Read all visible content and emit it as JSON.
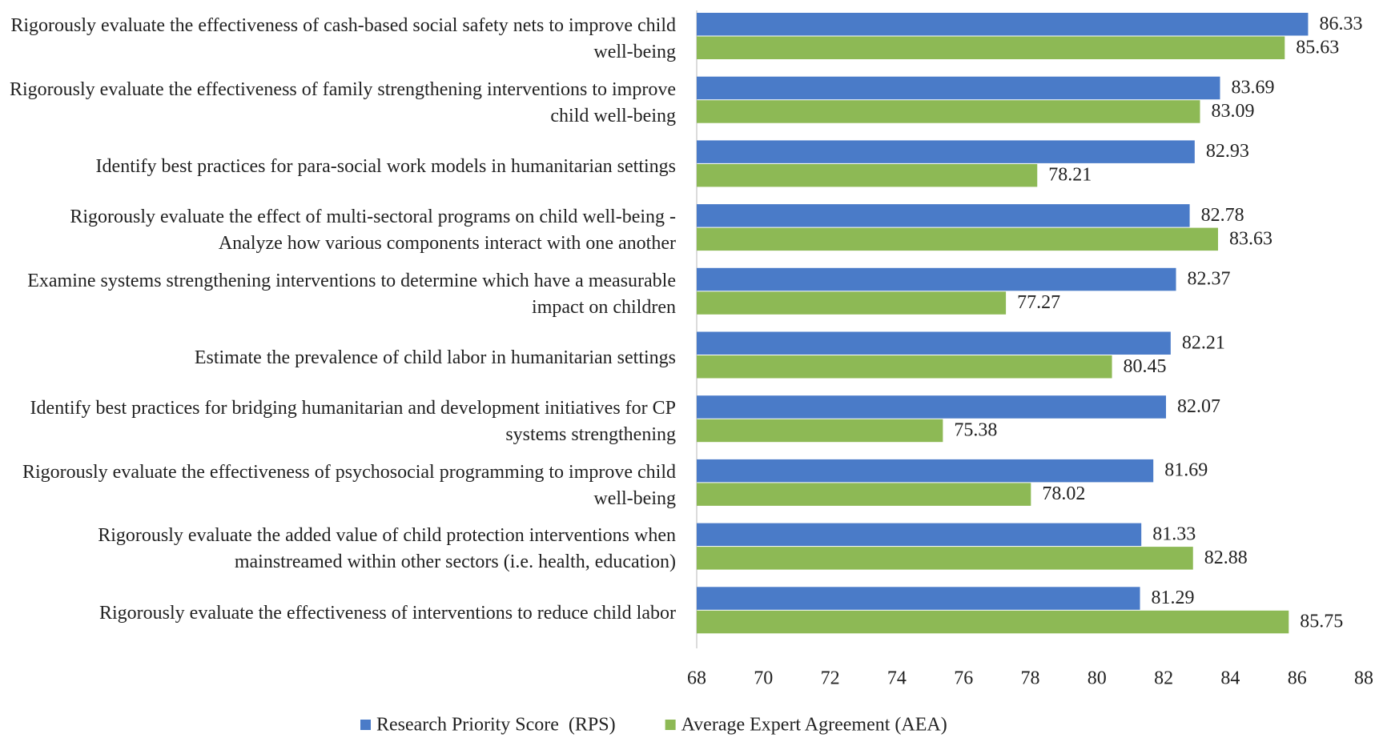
{
  "chart_data": {
    "type": "bar",
    "orientation": "horizontal",
    "categories": [
      "Rigorously evaluate the effectiveness of cash-based social safety nets to improve child well-being",
      "Rigorously evaluate the effectiveness of family strengthening interventions to improve child well-being",
      "Identify best practices for para-social work models in humanitarian settings",
      "Rigorously evaluate the effect of multi-sectoral programs on child well-being - Analyze how various components interact with one another",
      "Examine systems strengthening interventions to determine which have a measurable impact on children",
      "Estimate the prevalence of child labor in humanitarian settings",
      "Identify best practices for bridging humanitarian and development initiatives for CP systems strengthening",
      "Rigorously evaluate the effectiveness of psychosocial programming to improve child well-being",
      "Rigorously evaluate the added value of child protection interventions when mainstreamed within other sectors (i.e. health, education)",
      "Rigorously evaluate the effectiveness of interventions to reduce child labor"
    ],
    "series": [
      {
        "name": "Research Priority Score  (RPS)",
        "color": "#4a7bc8",
        "values": [
          86.33,
          83.69,
          82.93,
          82.78,
          82.37,
          82.21,
          82.07,
          81.69,
          81.33,
          81.29
        ]
      },
      {
        "name": "Average Expert Agreement (AEA)",
        "color": "#8db955",
        "values": [
          85.63,
          83.09,
          78.21,
          83.63,
          77.27,
          80.45,
          75.38,
          78.02,
          82.88,
          85.75
        ]
      }
    ],
    "xlim": [
      68,
      88
    ],
    "xticks": [
      68,
      70,
      72,
      74,
      76,
      78,
      80,
      82,
      84,
      86,
      88
    ],
    "legend": "bottom"
  }
}
